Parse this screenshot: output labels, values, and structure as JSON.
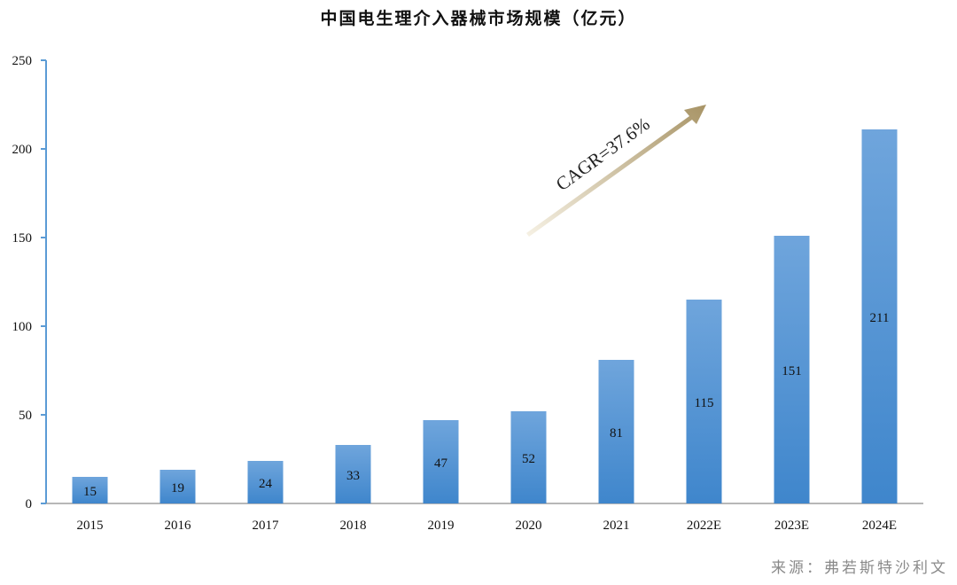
{
  "chart_data": {
    "type": "bar",
    "title": "中国电生理介入器械市场规模（亿元）",
    "categories": [
      "2015",
      "2016",
      "2017",
      "2018",
      "2019",
      "2020",
      "2021",
      "2022E",
      "2023E",
      "2024E"
    ],
    "values": [
      15,
      19,
      24,
      33,
      47,
      52,
      81,
      115,
      151,
      211
    ],
    "ylim": [
      0,
      250
    ],
    "yticks": [
      0,
      50,
      100,
      150,
      200,
      250
    ],
    "xlabel": "",
    "ylabel": "",
    "grid": false,
    "legend": "none",
    "annotation": "CAGR=37.6%",
    "colors": {
      "bar_top": "#6fa5dc",
      "bar_bottom": "#3f86cc",
      "axis": "#5b9bd5",
      "arrow": "#a89466"
    }
  },
  "source": "来源：弗若斯特沙利文"
}
